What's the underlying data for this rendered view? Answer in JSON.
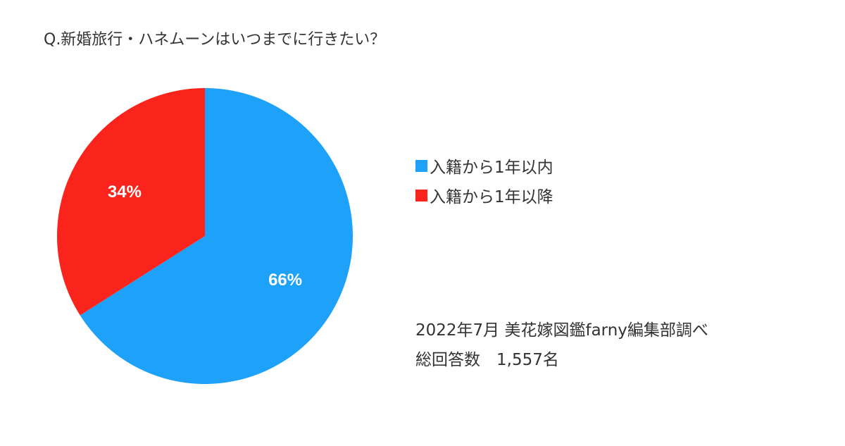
{
  "chart_data": {
    "type": "pie",
    "title": "Q.新婚旅行・ハネムーンはいつまでに行きたい？",
    "slices": [
      {
        "label": "入籍から1年以内",
        "value": 66,
        "value_label": "66%",
        "color": "#1ea1f9"
      },
      {
        "label": "入籍から1年以降",
        "value": 34,
        "value_label": "34%",
        "color": "#fa241c"
      }
    ],
    "start_angle": "12 o'clock",
    "direction": "clockwise",
    "legend_position": "right"
  },
  "footnote": {
    "source": "2022年7月 美花嫁図鑑farny編集部調べ",
    "respondents": "総回答数　1,557名"
  }
}
